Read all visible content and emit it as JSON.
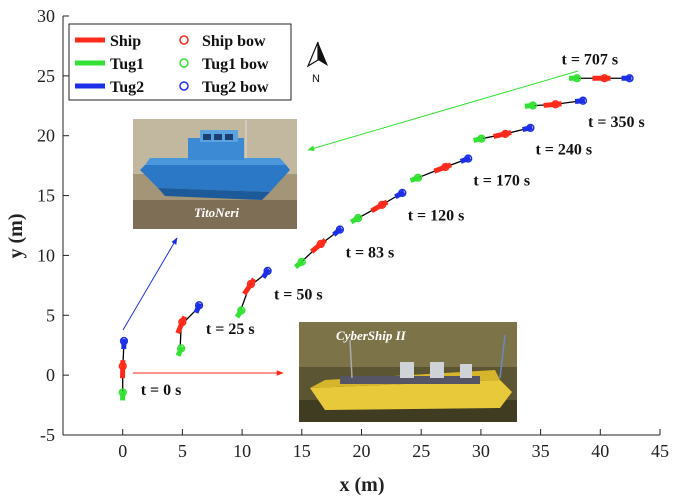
{
  "chart_data": {
    "type": "line",
    "xlabel": "x (m)",
    "ylabel": "y (m)",
    "xlim": [
      -5,
      45
    ],
    "ylim": [
      -5,
      30
    ],
    "xticks": [
      0,
      5,
      10,
      15,
      20,
      25,
      30,
      35,
      40,
      45
    ],
    "yticks": [
      -5,
      0,
      5,
      10,
      15,
      20,
      25,
      30
    ],
    "grid": false,
    "legend_position": "top-left",
    "legend": [
      {
        "label": "Ship",
        "kind": "line",
        "color": "#ff2a1a"
      },
      {
        "label": "Tug1",
        "kind": "line",
        "color": "#33e233"
      },
      {
        "label": "Tug2",
        "kind": "line",
        "color": "#1c2fe6"
      },
      {
        "label": "Ship bow",
        "kind": "marker",
        "color": "#ff2a1a"
      },
      {
        "label": "Tug1 bow",
        "kind": "marker",
        "color": "#33e233"
      },
      {
        "label": "Tug2 bow",
        "kind": "marker",
        "color": "#1c2fe6"
      }
    ],
    "snapshots": [
      {
        "label": "t = 0 s",
        "tug1": [
          0.0,
          -1.7
        ],
        "ship": [
          0.0,
          0.5
        ],
        "tug2": [
          0.1,
          2.6
        ]
      },
      {
        "label": "t = 25 s",
        "tug1": [
          4.8,
          2.0
        ],
        "ship": [
          4.9,
          4.2
        ],
        "tug2": [
          6.3,
          5.6
        ]
      },
      {
        "label": "t = 50 s",
        "tug1": [
          9.8,
          5.2
        ],
        "ship": [
          10.6,
          7.4
        ],
        "tug2": [
          12.0,
          8.5
        ]
      },
      {
        "label": "t = 83 s",
        "tug1": [
          14.8,
          9.3
        ],
        "ship": [
          16.4,
          10.8
        ],
        "tug2": [
          18.0,
          12.0
        ]
      },
      {
        "label": "t = 120 s",
        "tug1": [
          19.5,
          13.0
        ],
        "ship": [
          21.5,
          14.1
        ],
        "tug2": [
          23.2,
          15.1
        ]
      },
      {
        "label": "t = 170 s",
        "tug1": [
          24.5,
          16.4
        ],
        "ship": [
          26.8,
          17.3
        ],
        "tug2": [
          28.7,
          18.0
        ]
      },
      {
        "label": "t = 240 s",
        "tug1": [
          29.8,
          19.7
        ],
        "ship": [
          31.8,
          20.1
        ],
        "tug2": [
          33.9,
          20.6
        ]
      },
      {
        "label": "t = 350 s",
        "tug1": [
          34.1,
          22.5
        ],
        "ship": [
          36.0,
          22.6
        ],
        "tug2": [
          38.3,
          22.9
        ]
      },
      {
        "label": "t = 707 s",
        "tug1": [
          37.8,
          24.8
        ],
        "ship": [
          40.1,
          24.8
        ],
        "tug2": [
          42.2,
          24.8
        ]
      }
    ],
    "annotations": {
      "north_label": "N",
      "photo_titles": [
        "TitoNeri",
        "CyberShip II"
      ]
    },
    "colors": {
      "ship": "#ff2a1a",
      "tug1": "#33e233",
      "tug2": "#1c2fe6",
      "connector": "#000000"
    }
  }
}
